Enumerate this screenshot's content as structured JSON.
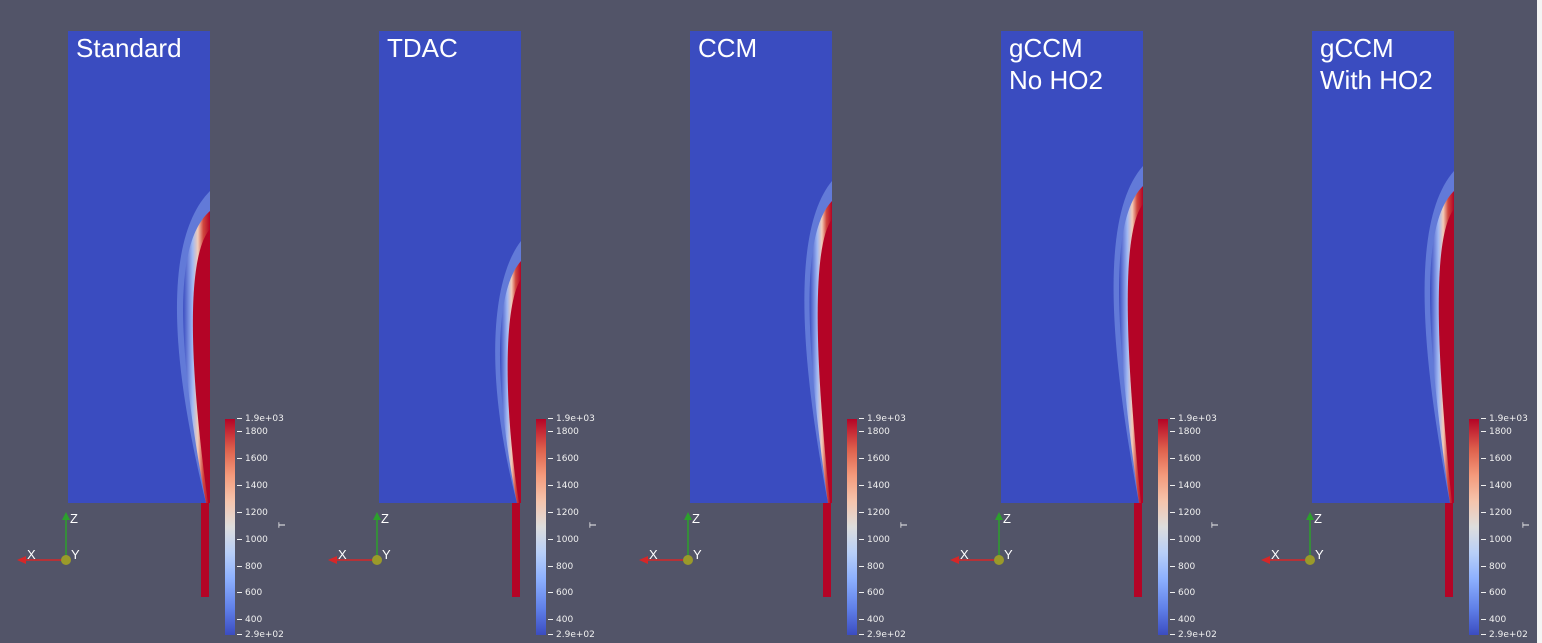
{
  "panels": [
    {
      "title": "Standard",
      "flame": "standard"
    },
    {
      "title": "TDAC",
      "flame": "tdac"
    },
    {
      "title": "CCM",
      "flame": "ccm"
    },
    {
      "title": "gCCM\nNo HO2",
      "flame": "gccm_no"
    },
    {
      "title": "gCCM\nWith HO2",
      "flame": "gccm_with"
    }
  ],
  "colorbar": {
    "title": "T",
    "ticks": [
      "1.9e+03",
      "1800",
      "1600",
      "1400",
      "1200",
      "1000",
      "800",
      "600",
      "400",
      "2.9e+02"
    ],
    "tick_values": [
      1900,
      1800,
      1600,
      1400,
      1200,
      1000,
      800,
      600,
      400,
      290
    ],
    "min": 290,
    "max": 1900
  },
  "axes": {
    "x": "X",
    "y": "Y",
    "z": "Z"
  },
  "colors": {
    "background": "#525468",
    "cold": "#3a4cc0",
    "hot": "#b40426",
    "axis_x": "#d62728",
    "axis_z": "#2ca02c",
    "axis_y": "#9a9a2a"
  }
}
